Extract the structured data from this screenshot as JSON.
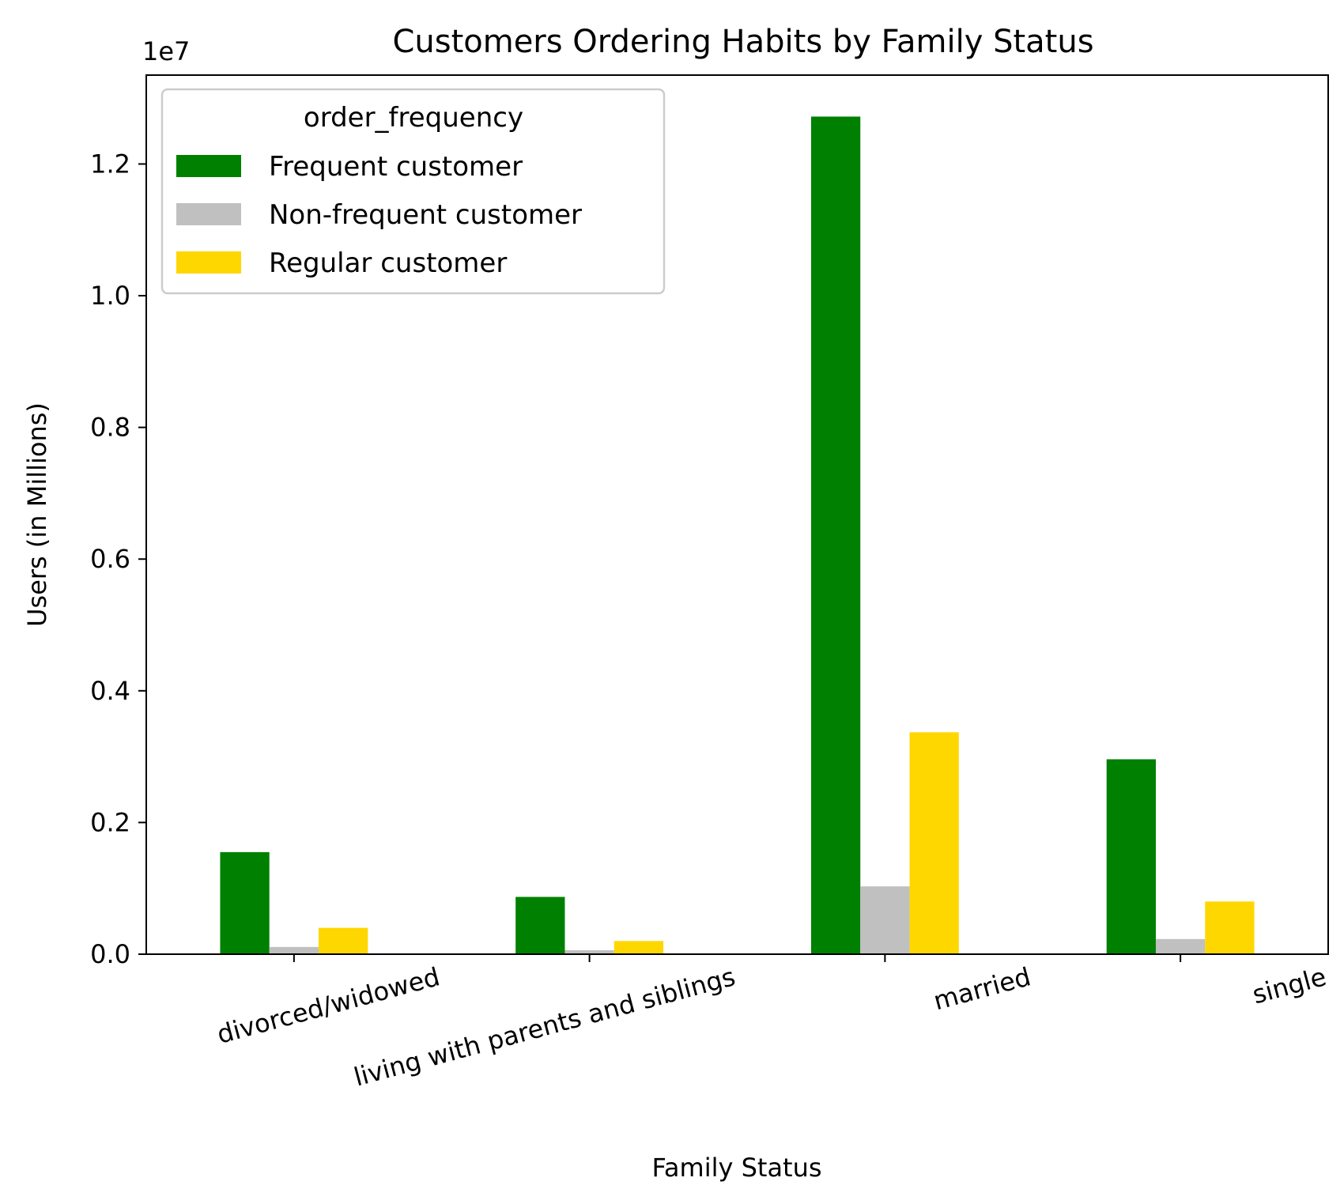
{
  "chart_data": {
    "type": "bar",
    "title": "Customers Ordering Habits by Family Status",
    "xlabel": "Family Status",
    "ylabel": "Users (in Millions)",
    "y_offset_text": "1e7",
    "categories": [
      "divorced/widowed",
      "living with parents and siblings",
      "married",
      "single"
    ],
    "series": [
      {
        "name": "Frequent customer",
        "color": "#008000",
        "values": [
          1550000,
          870000,
          12720000,
          2960000
        ]
      },
      {
        "name": "Non-frequent customer",
        "color": "#c0c0c0",
        "values": [
          110000,
          60000,
          1030000,
          230000
        ]
      },
      {
        "name": "Regular customer",
        "color": "#ffd700",
        "values": [
          400000,
          200000,
          3370000,
          800000
        ]
      }
    ],
    "yticks": [
      0,
      2000000,
      4000000,
      6000000,
      8000000,
      10000000,
      12000000
    ],
    "ytick_labels": [
      "0.0",
      "0.2",
      "0.4",
      "0.6",
      "0.8",
      "1.0",
      "1.2"
    ],
    "ylim": [
      0,
      13350000
    ],
    "legend": {
      "title": "order_frequency",
      "placement": "top-left"
    },
    "grid": false
  }
}
